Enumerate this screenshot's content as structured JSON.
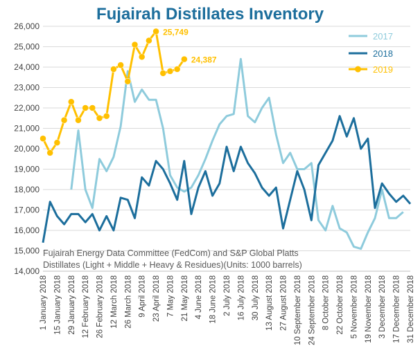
{
  "chart_data": {
    "type": "line",
    "title": "Fujairah Distillates Inventory",
    "note_lines": [
      "Fujairah Energy Data Committee  (FedCom) and S&P Global Platts",
      "Distillates (Light + Middle + Heavy & Residues)(Units: 1000 barrels)"
    ],
    "xlabel": "",
    "ylabel": "",
    "ylim": [
      14000,
      26000
    ],
    "yticks": [
      14000,
      15000,
      16000,
      17000,
      18000,
      19000,
      20000,
      21000,
      22000,
      23000,
      24000,
      25000,
      26000
    ],
    "ytick_labels": [
      "14,000",
      "15,000",
      "16,000",
      "17,000",
      "18,000",
      "19,000",
      "20,000",
      "21,000",
      "22,000",
      "23,000",
      "24,000",
      "25,000",
      "26,000"
    ],
    "x_labels": [
      "1 January 2018",
      "15 January 2018",
      "29 January 2018",
      "12 February 2018",
      "26 February 2018",
      "12 March 2018",
      "26 March 2018",
      "9 April 2018",
      "23 April 2018",
      "7 May 2018",
      "21 May 2018",
      "4 June 2018",
      "18 June 2018",
      "2 July 2018",
      "16 July 2018",
      "30 July 2018",
      "13 August 2018",
      "27 August 2018",
      "10 September 2018",
      "24 September 2018",
      "8 October 2018",
      "22 October 2018",
      "5 November 2018",
      "19 November 2018",
      "3 December 2018",
      "17 December 2018",
      "31 December 2018"
    ],
    "legend": {
      "placement": "top-right"
    },
    "grid": true,
    "colors": {
      "2017": "#8ecbdc",
      "2018": "#1c6e9c",
      "2019": "#ffc000",
      "title": "#1c6e9c",
      "grid": "#d9d9d9"
    },
    "series": [
      {
        "name": "2017",
        "start_index": 4,
        "values": [
          18000,
          20900,
          18000,
          17100,
          19500,
          18900,
          19600,
          21100,
          23800,
          22300,
          22900,
          22400,
          22400,
          21000,
          18700,
          18100,
          17900,
          18100,
          18700,
          19500,
          20400,
          21200,
          21600,
          21700,
          24400,
          21600,
          21300,
          22000,
          22500,
          20700,
          19300,
          19800,
          19000,
          19000,
          19300,
          16500,
          16000,
          17200,
          16100,
          15900,
          15200,
          15100,
          15900,
          16600,
          18000,
          16600,
          16600,
          16900
        ]
      },
      {
        "name": "2018",
        "start_index": 0,
        "values": [
          15400,
          17400,
          16700,
          16300,
          16800,
          16800,
          16400,
          16800,
          16000,
          16700,
          16000,
          17600,
          17500,
          16600,
          18600,
          18200,
          19400,
          19000,
          18300,
          17500,
          19400,
          16800,
          18100,
          18900,
          17700,
          18300,
          20100,
          18900,
          20100,
          19300,
          18800,
          18100,
          17700,
          18100,
          16100,
          17500,
          18900,
          18000,
          16500,
          19200,
          19800,
          20400,
          21600,
          20600,
          21500,
          20000,
          20500,
          17100,
          18300,
          17800,
          17400,
          17700,
          17300
        ]
      },
      {
        "name": "2019",
        "start_index": 0,
        "values": [
          20500,
          19800,
          20300,
          21400,
          22300,
          21400,
          22000,
          22000,
          21500,
          21600,
          23900,
          24100,
          23300,
          25100,
          24500,
          25300,
          25749,
          23700,
          23800,
          23900,
          24387
        ],
        "data_labels": [
          {
            "index": 16,
            "text": "25,749"
          },
          {
            "index": 20,
            "text": "24,387"
          }
        ]
      }
    ]
  }
}
